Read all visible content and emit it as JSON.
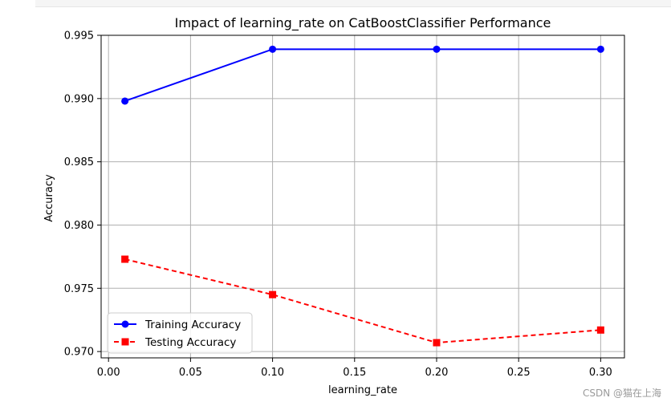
{
  "colors": {
    "training": "#0000ff",
    "testing": "#ff0000",
    "grid": "#b0b0b0",
    "axis": "#000000"
  },
  "watermark": "CSDN @猫在上海",
  "chart_data": {
    "type": "line",
    "title": "Impact of learning_rate on CatBoostClassifier Performance",
    "xlabel": "learning_rate",
    "ylabel": "Accuracy",
    "x": [
      0.01,
      0.1,
      0.2,
      0.3
    ],
    "xlim": [
      -0.0045,
      0.3145
    ],
    "ylim": [
      0.9695,
      0.995
    ],
    "xticks": [
      0.0,
      0.05,
      0.1,
      0.15,
      0.2,
      0.25,
      0.3
    ],
    "xtick_labels": [
      "0.00",
      "0.05",
      "0.10",
      "0.15",
      "0.20",
      "0.25",
      "0.30"
    ],
    "yticks": [
      0.97,
      0.975,
      0.98,
      0.985,
      0.99,
      0.995
    ],
    "ytick_labels": [
      "0.970",
      "0.975",
      "0.980",
      "0.985",
      "0.990",
      "0.995"
    ],
    "grid": true,
    "legend_position": "lower-left",
    "series": [
      {
        "name": "Training Accuracy",
        "values": [
          0.9898,
          0.9939,
          0.9939,
          0.9939
        ],
        "color": "#0000ff",
        "marker": "circle",
        "linestyle": "solid"
      },
      {
        "name": "Testing Accuracy",
        "values": [
          0.9773,
          0.9745,
          0.9707,
          0.9717
        ],
        "color": "#ff0000",
        "marker": "square",
        "linestyle": "dashed"
      }
    ]
  }
}
